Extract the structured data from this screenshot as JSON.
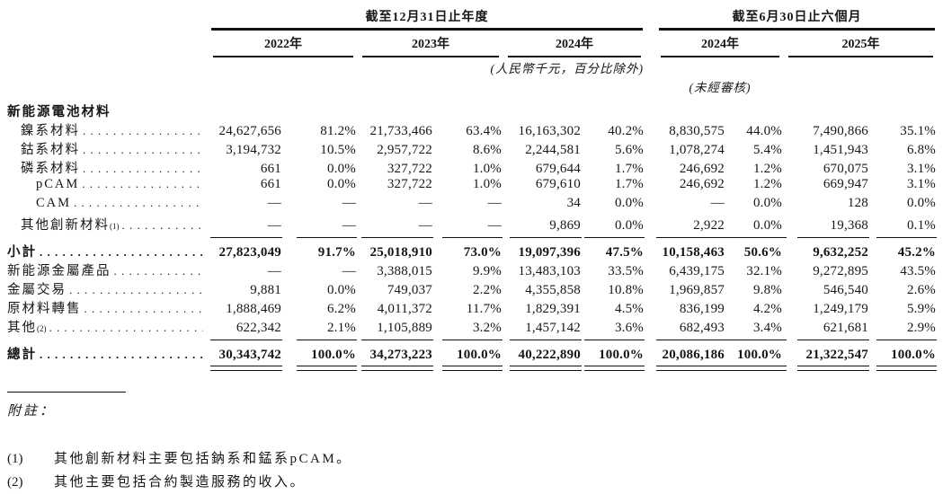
{
  "table": {
    "col_groups": [
      {
        "title": "截至12月31日止年度",
        "years": [
          "2022年",
          "2023年",
          "2024年"
        ]
      },
      {
        "title": "截至6月30日止六個月",
        "years": [
          "2024年",
          "2025年"
        ]
      }
    ],
    "unit_note": "(人民幣千元，百分比除外)",
    "audit_note": "(未經審核)",
    "rows": [
      {
        "type": "section",
        "label": "新能源電池材料"
      },
      {
        "label": "鎳系材料",
        "indent": 1,
        "values": [
          "24,627,656",
          "81.2%",
          "21,733,466",
          "63.4%",
          "16,163,302",
          "40.2%",
          "8,830,575",
          "44.0%",
          "7,490,866",
          "35.1%"
        ]
      },
      {
        "label": "鈷系材料",
        "indent": 1,
        "values": [
          "3,194,732",
          "10.5%",
          "2,957,722",
          "8.6%",
          "2,244,581",
          "5.6%",
          "1,078,274",
          "5.4%",
          "1,451,943",
          "6.8%"
        ]
      },
      {
        "label": "磷系材料",
        "indent": 1,
        "values": [
          "661",
          "0.0%",
          "327,722",
          "1.0%",
          "679,644",
          "1.7%",
          "246,692",
          "1.2%",
          "670,075",
          "3.1%"
        ]
      },
      {
        "label": "pCAM",
        "indent": 2,
        "values": [
          "661",
          "0.0%",
          "327,722",
          "1.0%",
          "679,610",
          "1.7%",
          "246,692",
          "1.2%",
          "669,947",
          "3.1%"
        ]
      },
      {
        "label": "CAM",
        "indent": 2,
        "values": [
          "—",
          "—",
          "—",
          "—",
          "34",
          "0.0%",
          "—",
          "0.0%",
          "128",
          "0.0%"
        ]
      },
      {
        "label": "其他創新材料",
        "sup": "(1)",
        "indent": 1,
        "rule_below": true,
        "values": [
          "—",
          "—",
          "—",
          "—",
          "9,869",
          "0.0%",
          "2,922",
          "0.0%",
          "19,368",
          "0.1%"
        ]
      },
      {
        "label": "小計",
        "bold": true,
        "values": [
          "27,823,049",
          "91.7%",
          "25,018,910",
          "73.0%",
          "19,097,396",
          "47.5%",
          "10,158,463",
          "50.6%",
          "9,632,252",
          "45.2%"
        ]
      },
      {
        "label": "新能源金屬產品",
        "values": [
          "—",
          "—",
          "3,388,015",
          "9.9%",
          "13,483,103",
          "33.5%",
          "6,439,175",
          "32.1%",
          "9,272,895",
          "43.5%"
        ]
      },
      {
        "label": "金屬交易",
        "values": [
          "9,881",
          "0.0%",
          "749,037",
          "2.2%",
          "4,355,858",
          "10.8%",
          "1,969,857",
          "9.8%",
          "546,540",
          "2.6%"
        ]
      },
      {
        "label": "原材料轉售",
        "values": [
          "1,888,469",
          "6.2%",
          "4,011,372",
          "11.7%",
          "1,829,391",
          "4.5%",
          "836,199",
          "4.2%",
          "1,249,179",
          "5.9%"
        ]
      },
      {
        "label": "其他",
        "sup": "(2)",
        "rule_below": true,
        "values": [
          "622,342",
          "2.1%",
          "1,105,889",
          "3.2%",
          "1,457,142",
          "3.6%",
          "682,493",
          "3.4%",
          "621,681",
          "2.9%"
        ]
      },
      {
        "label": "總計",
        "bold": true,
        "double_rule_below": true,
        "values": [
          "30,343,742",
          "100.0%",
          "34,273,223",
          "100.0%",
          "40,222,890",
          "100.0%",
          "20,086,186",
          "100.0%",
          "21,322,547",
          "100.0%"
        ]
      }
    ]
  },
  "notes": {
    "heading": "附註：",
    "items": [
      {
        "num": "(1)",
        "text": "其他創新材料主要包括鈉系和錳系pCAM。"
      },
      {
        "num": "(2)",
        "text": "其他主要包括合約製造服務的收入。"
      }
    ]
  }
}
